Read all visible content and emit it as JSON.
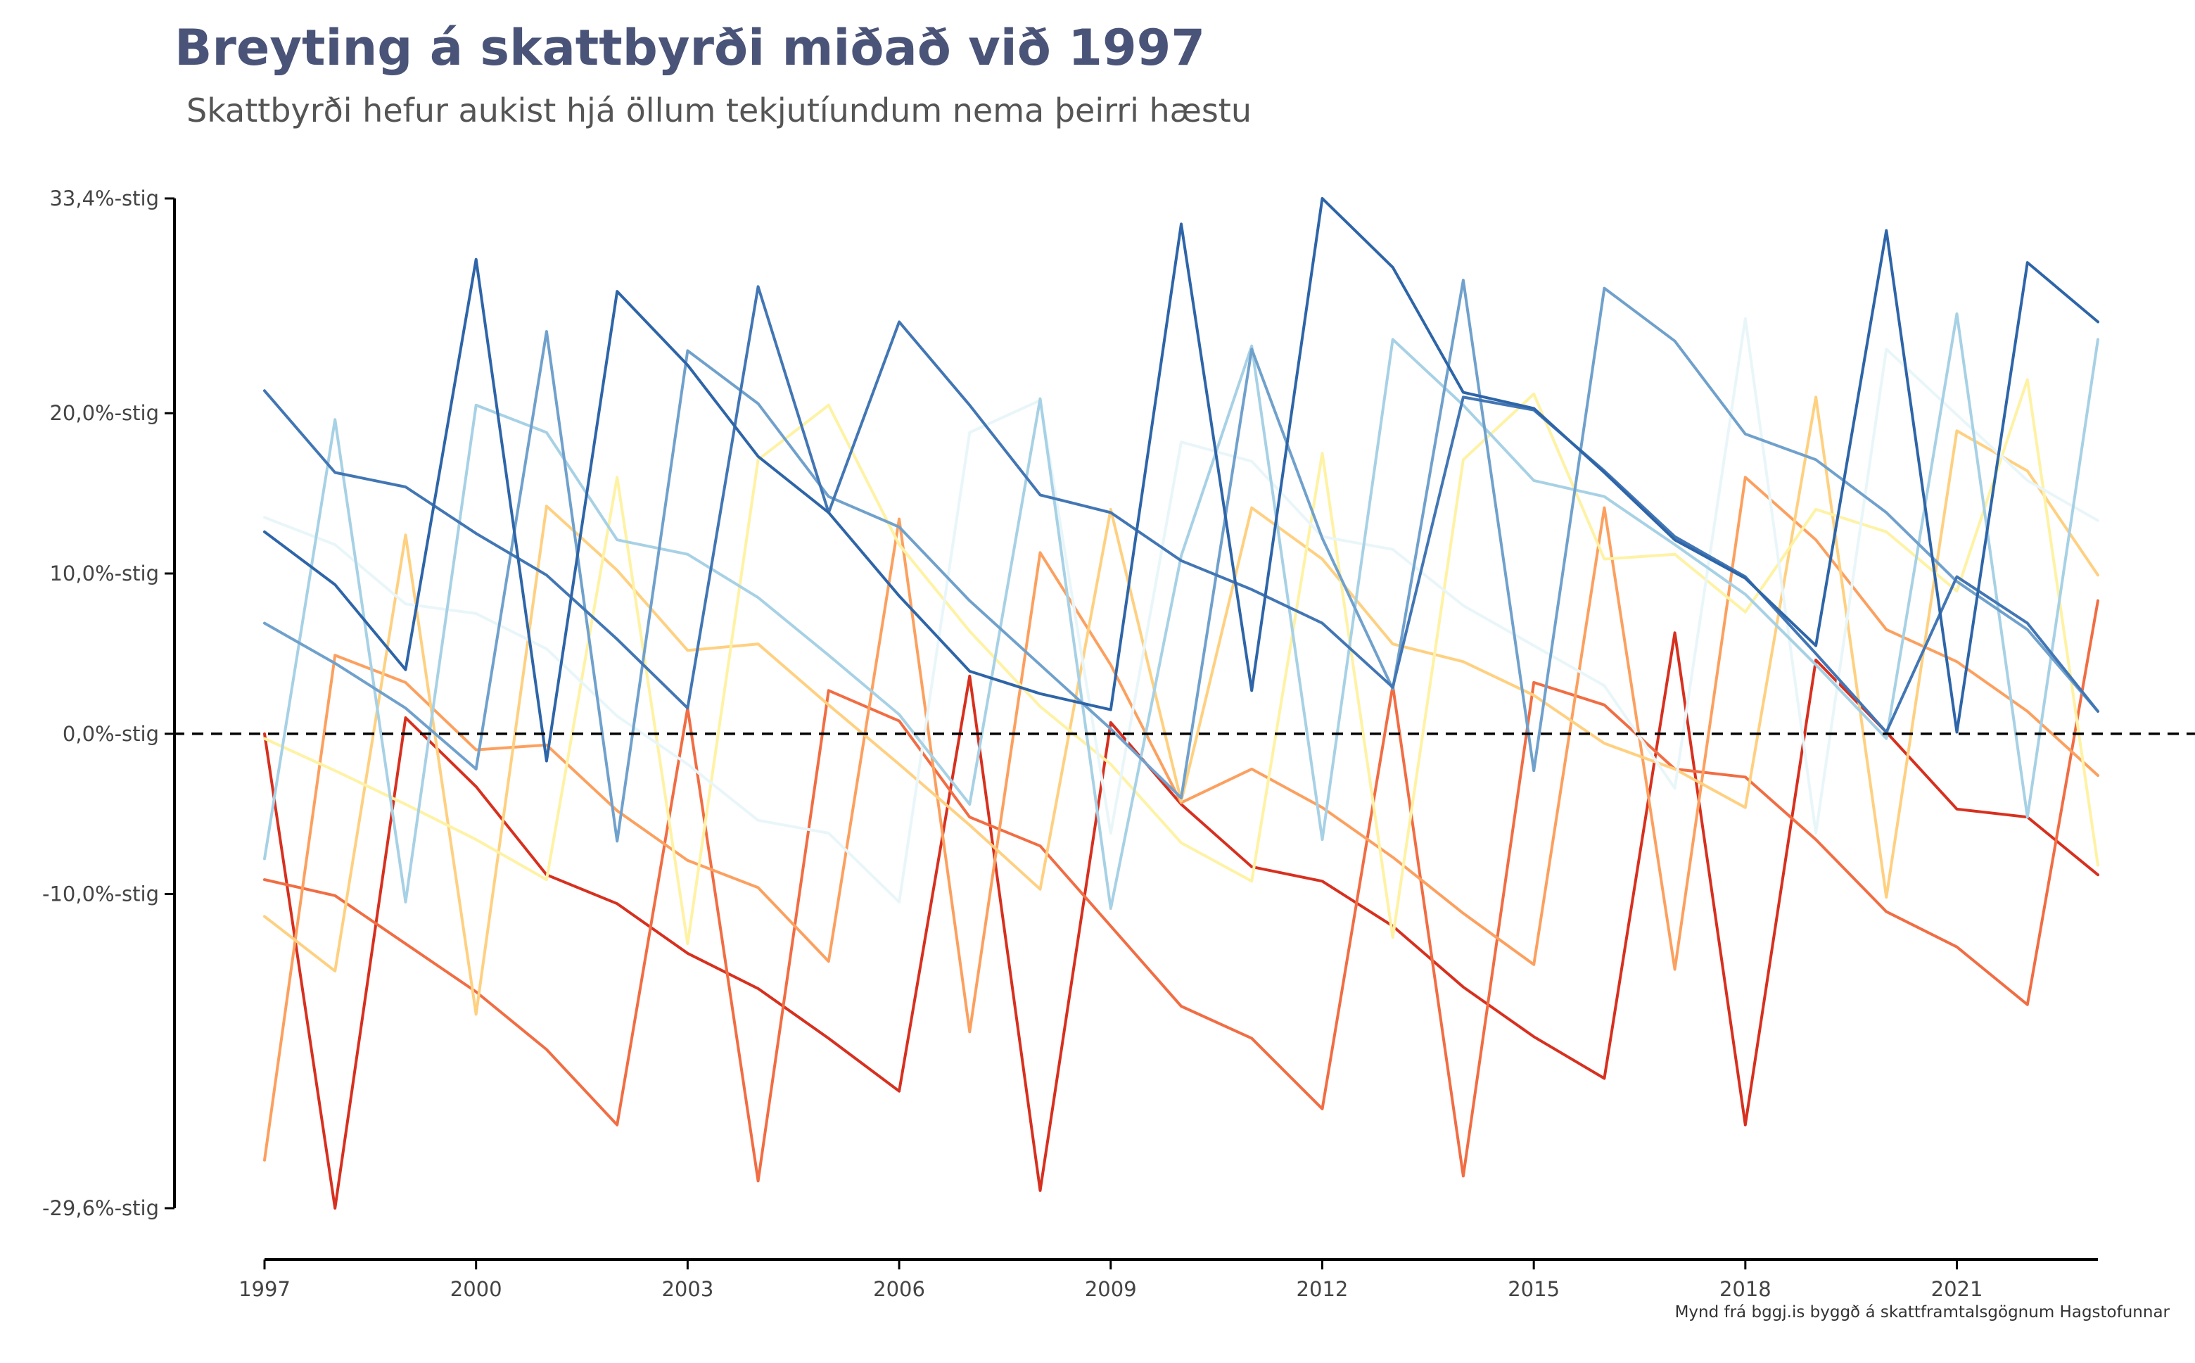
{
  "title": "Breyting á skattbyrði miðað við 1997",
  "subtitle": "Skattbyrði hefur aukist hjá öllum tekjutíundum nema þeirri hæstu",
  "caption": "Mynd frá bggj.is byggð á skattframtalsgögnum Hagstofunnar",
  "chart_data": {
    "type": "line",
    "title": "Breyting á skattbyrði miðað við 1997",
    "subtitle": "Skattbyrði hefur aukist hjá öllum tekjutíundum nema þeirri hæstu",
    "xlabel": "",
    "ylabel": "",
    "x": [
      1997,
      1998,
      1999,
      2000,
      2001,
      2002,
      2003,
      2004,
      2005,
      2006,
      2007,
      2008,
      2009,
      2010,
      2011,
      2012,
      2013,
      2014,
      2015,
      2016,
      2017,
      2018,
      2019,
      2020,
      2021,
      2022,
      2023
    ],
    "x_ticks": [
      "1997",
      "2000",
      "2003",
      "2006",
      "2009",
      "2012",
      "2015",
      "2018",
      "2021"
    ],
    "y_ticks": [
      {
        "value": 33.4,
        "label": "33,4%-stig"
      },
      {
        "value": 20.0,
        "label": "20,0%-stig"
      },
      {
        "value": 10.0,
        "label": "10,0%-stig"
      },
      {
        "value": 0.0,
        "label": "0,0%-stig"
      },
      {
        "value": -10.0,
        "label": "-10,0%-stig"
      },
      {
        "value": -29.6,
        "label": "-29,6%-stig"
      }
    ],
    "ylim": [
      -29.6,
      33.4
    ],
    "xlim": [
      1997,
      2023
    ],
    "reference_line": {
      "y": 0,
      "style": "dashed",
      "color": "#000000"
    },
    "grid": false,
    "legend": "none",
    "series": [
      {
        "color": "#d7301f",
        "values": [
          0.0,
          -29.6,
          1.0,
          -3.3,
          -8.8,
          -10.6,
          -13.7,
          -15.9,
          -19.0,
          -22.3,
          3.6,
          -28.5,
          0.7,
          -4.4,
          -8.3,
          -9.2,
          -12.0,
          -15.8,
          -18.9,
          -21.5,
          6.3,
          -24.4,
          4.6,
          0.1,
          -4.7,
          -5.2,
          -8.8
        ]
      },
      {
        "color": "#f16d43",
        "values": [
          -9.1,
          -10.1,
          -13.1,
          -16.1,
          -19.7,
          -24.4,
          1.6,
          -27.9,
          2.7,
          0.8,
          -5.2,
          -7.0,
          -12.0,
          -17.0,
          -19.0,
          -23.4,
          3.0,
          -27.6,
          3.2,
          1.8,
          -2.2,
          -2.7,
          -6.6,
          -11.1,
          -13.3,
          -16.9,
          8.3
        ]
      },
      {
        "color": "#fca05f",
        "values": [
          -26.6,
          4.9,
          3.2,
          -1.0,
          -0.7,
          -4.8,
          -7.9,
          -9.6,
          -14.2,
          13.4,
          -18.6,
          11.3,
          4.3,
          -4.3,
          -2.2,
          -4.6,
          -7.7,
          -11.2,
          -14.4,
          14.1,
          -14.7,
          16.0,
          12.1,
          6.5,
          4.5,
          1.4,
          -2.6
        ]
      },
      {
        "color": "#fed080",
        "values": [
          -11.4,
          -14.8,
          12.4,
          -17.5,
          14.2,
          10.2,
          5.2,
          5.6,
          1.8,
          -1.9,
          -5.7,
          -9.7,
          14.0,
          -4.2,
          14.1,
          10.9,
          5.6,
          4.5,
          2.4,
          -0.6,
          -2.2,
          -4.6,
          21.0,
          -10.2,
          18.9,
          16.4,
          9.9
        ]
      },
      {
        "color": "#fef2a4",
        "values": [
          -0.3,
          -2.3,
          -4.4,
          -6.6,
          -9.1,
          16.0,
          -13.1,
          17.1,
          20.5,
          11.8,
          6.4,
          1.7,
          -1.9,
          -6.8,
          -9.2,
          17.5,
          -12.7,
          17.1,
          21.2,
          10.9,
          11.2,
          7.6,
          14.0,
          12.6,
          8.9,
          22.1,
          -8.2
        ]
      },
      {
        "color": "#e9f6f9",
        "values": [
          13.5,
          11.8,
          8.1,
          7.5,
          5.3,
          1.1,
          -1.9,
          -5.4,
          -6.2,
          -10.5,
          18.8,
          20.8,
          -6.2,
          18.2,
          17.0,
          12.3,
          11.5,
          8.0,
          5.5,
          3.0,
          -3.4,
          25.9,
          -6.2,
          24.0,
          19.9,
          15.8,
          13.3
        ]
      },
      {
        "color": "#a7d1e5",
        "values": [
          -7.8,
          19.6,
          -10.5,
          20.5,
          18.8,
          12.1,
          11.2,
          8.5,
          4.9,
          1.2,
          -4.4,
          20.9,
          -10.9,
          11.1,
          24.2,
          -6.6,
          24.6,
          20.5,
          15.8,
          14.8,
          11.8,
          8.7,
          4.3,
          -0.3,
          26.2,
          -5.2,
          24.6
        ]
      },
      {
        "color": "#70a1cc",
        "values": [
          6.9,
          4.4,
          1.6,
          -2.2,
          25.1,
          -6.7,
          23.9,
          20.6,
          14.8,
          12.9,
          8.3,
          4.3,
          0.3,
          -4.0,
          24.0,
          12.2,
          2.8,
          28.3,
          -2.3,
          27.8,
          24.5,
          18.7,
          17.1,
          13.8,
          9.5,
          6.5,
          1.4
        ]
      },
      {
        "color": "#4276b4",
        "values": [
          21.4,
          16.3,
          15.4,
          12.5,
          9.9,
          5.9,
          1.6,
          27.9,
          13.8,
          25.7,
          20.5,
          14.9,
          13.8,
          10.8,
          9.0,
          6.9,
          2.9,
          21.0,
          20.2,
          16.4,
          12.3,
          9.8,
          5.0,
          0.1,
          9.8,
          6.9,
          1.4
        ]
      },
      {
        "color": "#2e65a8",
        "values": [
          12.6,
          9.3,
          4.0,
          29.6,
          -1.7,
          27.6,
          23.0,
          17.3,
          13.8,
          8.6,
          3.9,
          2.5,
          1.5,
          31.8,
          2.7,
          33.4,
          29.1,
          21.3,
          20.3,
          16.3,
          12.1,
          9.7,
          5.5,
          31.4,
          0.1,
          29.4,
          25.7
        ]
      }
    ]
  }
}
